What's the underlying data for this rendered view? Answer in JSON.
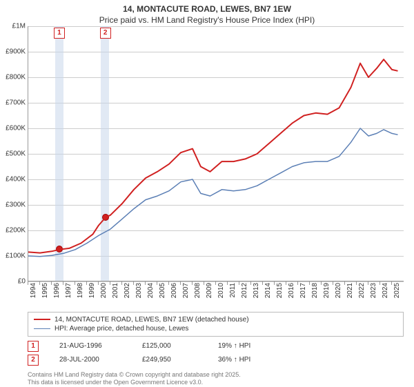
{
  "title_line1": "14, MONTACUTE ROAD, LEWES, BN7 1EW",
  "title_line2": "Price paid vs. HM Land Registry's House Price Index (HPI)",
  "chart": {
    "type": "line",
    "x_years": [
      1994,
      1995,
      1996,
      1997,
      1998,
      1999,
      2000,
      2001,
      2002,
      2003,
      2004,
      2005,
      2006,
      2007,
      2008,
      2009,
      2010,
      2011,
      2012,
      2013,
      2014,
      2015,
      2016,
      2017,
      2018,
      2019,
      2020,
      2021,
      2022,
      2023,
      2024,
      2025
    ],
    "xlim": [
      1994,
      2026
    ],
    "ylim": [
      0,
      1000000
    ],
    "yticks": [
      0,
      100000,
      200000,
      300000,
      400000,
      500000,
      600000,
      700000,
      800000,
      900000,
      1000000
    ],
    "ytick_labels": [
      "£0",
      "£100K",
      "£200K",
      "£300K",
      "£400K",
      "£500K",
      "£600K",
      "£700K",
      "£800K",
      "£900K",
      "£1M"
    ],
    "grid_color": "#cccccc",
    "axis_color": "#999999",
    "background_color": "#ffffff",
    "tick_fontsize": 10,
    "title_fontsize": 12,
    "marker_band_color": "rgba(200,215,235,.55)",
    "marker_flag_border": "#d02020",
    "series": [
      {
        "name": "14, MONTACUTE ROAD, LEWES, BN7 1EW (detached house)",
        "color": "#d02020",
        "width": 2,
        "points": [
          [
            1994.0,
            115000
          ],
          [
            1995.0,
            112000
          ],
          [
            1996.0,
            118000
          ],
          [
            1996.64,
            125000
          ],
          [
            1997.5,
            130000
          ],
          [
            1998.5,
            150000
          ],
          [
            1999.5,
            185000
          ],
          [
            2000.0,
            220000
          ],
          [
            2000.57,
            249950
          ],
          [
            2001.0,
            260000
          ],
          [
            2002.0,
            305000
          ],
          [
            2003.0,
            360000
          ],
          [
            2004.0,
            405000
          ],
          [
            2005.0,
            430000
          ],
          [
            2006.0,
            460000
          ],
          [
            2007.0,
            505000
          ],
          [
            2008.0,
            520000
          ],
          [
            2008.7,
            450000
          ],
          [
            2009.5,
            430000
          ],
          [
            2010.5,
            470000
          ],
          [
            2011.5,
            470000
          ],
          [
            2012.5,
            480000
          ],
          [
            2013.5,
            500000
          ],
          [
            2014.5,
            540000
          ],
          [
            2015.5,
            580000
          ],
          [
            2016.5,
            620000
          ],
          [
            2017.5,
            650000
          ],
          [
            2018.5,
            660000
          ],
          [
            2019.5,
            655000
          ],
          [
            2020.5,
            680000
          ],
          [
            2021.5,
            760000
          ],
          [
            2022.3,
            855000
          ],
          [
            2023.0,
            800000
          ],
          [
            2023.7,
            835000
          ],
          [
            2024.3,
            870000
          ],
          [
            2025.0,
            830000
          ],
          [
            2025.5,
            825000
          ]
        ]
      },
      {
        "name": "HPI: Average price, detached house, Lewes",
        "color": "#5b7fb5",
        "width": 1.5,
        "points": [
          [
            1994.0,
            100000
          ],
          [
            1995.0,
            98000
          ],
          [
            1996.0,
            102000
          ],
          [
            1997.0,
            110000
          ],
          [
            1998.0,
            125000
          ],
          [
            1999.0,
            150000
          ],
          [
            2000.0,
            180000
          ],
          [
            2001.0,
            205000
          ],
          [
            2002.0,
            245000
          ],
          [
            2003.0,
            285000
          ],
          [
            2004.0,
            320000
          ],
          [
            2005.0,
            335000
          ],
          [
            2006.0,
            355000
          ],
          [
            2007.0,
            390000
          ],
          [
            2008.0,
            400000
          ],
          [
            2008.7,
            345000
          ],
          [
            2009.5,
            335000
          ],
          [
            2010.5,
            360000
          ],
          [
            2011.5,
            355000
          ],
          [
            2012.5,
            360000
          ],
          [
            2013.5,
            375000
          ],
          [
            2014.5,
            400000
          ],
          [
            2015.5,
            425000
          ],
          [
            2016.5,
            450000
          ],
          [
            2017.5,
            465000
          ],
          [
            2018.5,
            470000
          ],
          [
            2019.5,
            470000
          ],
          [
            2020.5,
            490000
          ],
          [
            2021.5,
            545000
          ],
          [
            2022.3,
            600000
          ],
          [
            2023.0,
            570000
          ],
          [
            2023.7,
            580000
          ],
          [
            2024.3,
            595000
          ],
          [
            2025.0,
            580000
          ],
          [
            2025.5,
            575000
          ]
        ]
      }
    ],
    "markers": [
      {
        "n": "1",
        "x": 1996.64,
        "y": 125000,
        "band": [
          1996.3,
          1997.0
        ]
      },
      {
        "n": "2",
        "x": 2000.57,
        "y": 249950,
        "band": [
          2000.2,
          2000.9
        ]
      }
    ]
  },
  "legend": {
    "items": [
      {
        "color": "#d02020",
        "width": 2,
        "label": "14, MONTACUTE ROAD, LEWES, BN7 1EW (detached house)"
      },
      {
        "color": "#5b7fb5",
        "width": 1.5,
        "label": "HPI: Average price, detached house, Lewes"
      }
    ]
  },
  "transactions": [
    {
      "n": "1",
      "date": "21-AUG-1996",
      "price": "£125,000",
      "delta": "19% ↑ HPI"
    },
    {
      "n": "2",
      "date": "28-JUL-2000",
      "price": "£249,950",
      "delta": "36% ↑ HPI"
    }
  ],
  "footer_line1": "Contains HM Land Registry data © Crown copyright and database right 2025.",
  "footer_line2": "This data is licensed under the Open Government Licence v3.0."
}
